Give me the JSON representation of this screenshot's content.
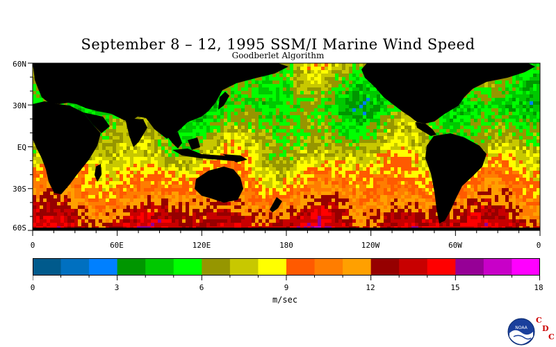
{
  "header": {
    "title": "September 8 – 12, 1995 SSM/I Marine Wind Speed",
    "subtitle": "Goodberlet Algorithm"
  },
  "map": {
    "lat_labels": [
      "60N",
      "30N",
      "EQ",
      "30S",
      "60S"
    ],
    "lon_labels": [
      "0",
      "60E",
      "120E",
      "180",
      "120W",
      "60W",
      "0"
    ],
    "land_color": "#000000",
    "ocean_pattern": "latitude-banded wind speed field"
  },
  "colorbar": {
    "bin_colors": [
      "#005a8c",
      "#0070c0",
      "#0080ff",
      "#009600",
      "#00c800",
      "#00ff00",
      "#969600",
      "#c8c800",
      "#ffff00",
      "#ff5a00",
      "#ff7d00",
      "#ffa000",
      "#960000",
      "#c80000",
      "#ff0000",
      "#960096",
      "#c800c8",
      "#ff00ff"
    ],
    "tick_labels": [
      "0",
      "3",
      "6",
      "9",
      "12",
      "15",
      "18"
    ],
    "units": "m/sec",
    "range": [
      0,
      18
    ]
  },
  "branding": {
    "logo_icon": "noaa-logo-icon",
    "logo_text": "NOAA",
    "cdc_letters": [
      "C",
      "D",
      "C"
    ]
  },
  "chart_data": {
    "type": "heatmap",
    "title": "September 8 – 12, 1995 SSM/I Marine Wind Speed",
    "subtitle": "Goodberlet Algorithm",
    "xlabel": "",
    "ylabel": "",
    "x_ticks": [
      "0",
      "60E",
      "120E",
      "180",
      "120W",
      "60W",
      "0"
    ],
    "y_ticks": [
      "60N",
      "30N",
      "EQ",
      "30S",
      "60S"
    ],
    "ylim": [
      "60S",
      "60N"
    ],
    "colorbar": {
      "min": 0,
      "max": 18,
      "ticks": [
        0,
        3,
        6,
        9,
        12,
        15,
        18
      ],
      "units": "m/sec"
    },
    "zonal_pattern": [
      {
        "lat": "60N",
        "wind_speed_m_s": 7
      },
      {
        "lat": "30N",
        "wind_speed_m_s": 5
      },
      {
        "lat": "EQ",
        "wind_speed_m_s": 7
      },
      {
        "lat": "30S",
        "wind_speed_m_s": 10
      },
      {
        "lat": "60S",
        "wind_speed_m_s": 14
      }
    ]
  }
}
